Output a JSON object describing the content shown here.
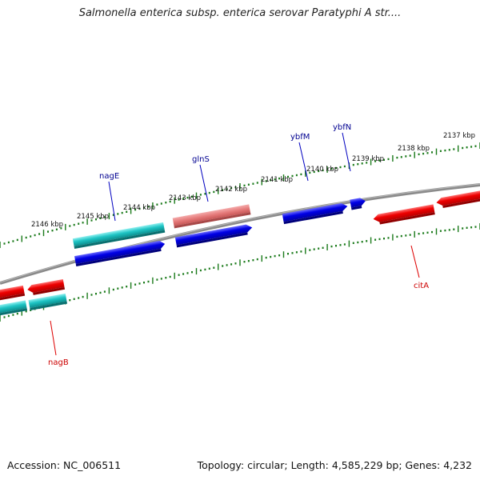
{
  "title": "Salmonella enterica subsp. enterica serovar Paratyphi A str....",
  "accession": "Accession: NC_006511",
  "summary": "Topology: circular; Length: 4,585,229 bp; Genes: 4,232",
  "colors": {
    "forward_gene": "#0000e0",
    "reverse_gene": "#e00000",
    "cds_cyan": "#20c0c0",
    "rna_pink": "#e87878",
    "backbone": "#808080",
    "ticks": "#1a7a1a",
    "forward_label": "#00008b",
    "reverse_label": "#cc0000"
  },
  "scale_labels": [
    "2137 kbp",
    "2138 kbp",
    "2139 kbp",
    "2140 kbp",
    "2141 kbp",
    "2142 kbp",
    "2143 kbp",
    "2144 kbp",
    "2145 kbp",
    "2146 kbp"
  ],
  "gene_labels": {
    "nagE": "nagE",
    "glnS": "glnS",
    "ybfM": "ybfM",
    "ybfN": "ybfN",
    "citA": "citA",
    "nagB": "nagB"
  }
}
